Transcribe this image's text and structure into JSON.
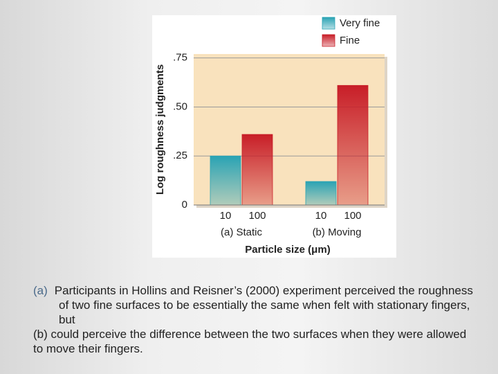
{
  "chart_data": {
    "type": "bar",
    "y_label": "Log roughness judgments",
    "x_label": "Particle size (μm)",
    "categories": [
      "(a) Static",
      "(b) Moving"
    ],
    "series": [
      {
        "name": "Very fine",
        "sublabel": "10",
        "color": "#2aa3b4",
        "values": [
          0.25,
          0.12
        ]
      },
      {
        "name": "Fine",
        "sublabel": "100",
        "color": "#c81e28",
        "values": [
          0.36,
          0.61
        ]
      }
    ],
    "ylim": [
      0,
      0.77
    ],
    "yticks": [
      0,
      {
        "value": 0.25,
        "label": ".25"
      },
      {
        "value": 0.5,
        "label": ".50"
      },
      {
        "value": 0.75,
        "label": ".75"
      }
    ],
    "grid": true,
    "legend": "top-right"
  },
  "caption": {
    "marker": "(a)",
    "part_a": "Participants in Hollins and Reisner’s (2000) experiment perceived the roughness of two fine surfaces to be essentially the same when felt with stationary fingers, but",
    "part_b": "(b) could perceive the difference between the two surfaces when they were allowed to move their fingers."
  }
}
